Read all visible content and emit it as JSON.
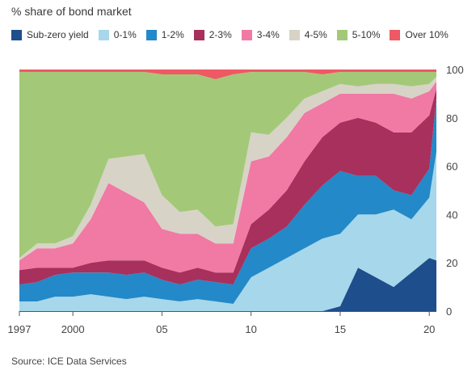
{
  "title": "% share of bond market",
  "source": "Source: ICE Data Services",
  "chart_data": {
    "type": "area",
    "stacked": true,
    "title": "% share of bond market",
    "xlabel": "",
    "ylabel": "",
    "xlim": [
      1997,
      2020.4
    ],
    "ylim": [
      0,
      100
    ],
    "x_ticks": [
      {
        "label": "1997",
        "value": 1997
      },
      {
        "label": "2000",
        "value": 2000
      },
      {
        "label": "05",
        "value": 2005
      },
      {
        "label": "10",
        "value": 2010
      },
      {
        "label": "15",
        "value": 2015
      },
      {
        "label": "20",
        "value": 2020
      }
    ],
    "y_ticks": [
      0,
      20,
      40,
      60,
      80,
      100
    ],
    "y_axis_side": "right",
    "grid": false,
    "legend_placement": "top",
    "x": [
      1997,
      1998,
      1999,
      2000,
      2001,
      2002,
      2003,
      2004,
      2005,
      2006,
      2007,
      2008,
      2009,
      2010,
      2011,
      2012,
      2013,
      2014,
      2015,
      2016,
      2017,
      2018,
      2019,
      2020,
      2020.4
    ],
    "series": [
      {
        "name": "Sub-zero yield",
        "color": "#1f4e8c",
        "values": [
          0,
          0,
          0,
          0,
          0,
          0,
          0,
          0,
          0,
          0,
          0,
          0,
          0,
          0,
          0,
          0,
          0,
          0,
          2,
          18,
          14,
          10,
          16,
          22,
          21
        ]
      },
      {
        "name": "0-1%",
        "color": "#a7d7ea",
        "values": [
          4,
          4,
          6,
          6,
          7,
          6,
          5,
          6,
          5,
          4,
          5,
          4,
          3,
          14,
          18,
          22,
          26,
          30,
          30,
          22,
          26,
          32,
          22,
          25,
          45
        ]
      },
      {
        "name": "1-2%",
        "color": "#2389c8",
        "values": [
          7,
          8,
          9,
          10,
          9,
          10,
          10,
          10,
          8,
          7,
          8,
          8,
          8,
          12,
          12,
          13,
          18,
          22,
          26,
          16,
          16,
          8,
          10,
          12,
          22
        ]
      },
      {
        "name": "2-3%",
        "color": "#a8305d",
        "values": [
          6,
          6,
          3,
          2,
          4,
          5,
          6,
          5,
          5,
          5,
          5,
          4,
          5,
          10,
          12,
          15,
          18,
          20,
          20,
          24,
          22,
          24,
          26,
          22,
          4
        ]
      },
      {
        "name": "3-4%",
        "color": "#f07aa4",
        "values": [
          4,
          8,
          8,
          10,
          18,
          32,
          28,
          24,
          16,
          16,
          14,
          12,
          12,
          26,
          22,
          22,
          20,
          14,
          12,
          10,
          12,
          16,
          14,
          10,
          3
        ]
      },
      {
        "name": "4-5%",
        "color": "#d8d3c7",
        "values": [
          1,
          2,
          2,
          3,
          6,
          10,
          15,
          20,
          14,
          9,
          10,
          7,
          8,
          12,
          9,
          8,
          6,
          5,
          4,
          3,
          4,
          4,
          5,
          3,
          2
        ]
      },
      {
        "name": "5-10%",
        "color": "#a3c978",
        "values": [
          77,
          71,
          71,
          68,
          55,
          36,
          35,
          34,
          50,
          57,
          56,
          61,
          62,
          25,
          26,
          19,
          11,
          7,
          5,
          6,
          5,
          5,
          6,
          5,
          2
        ]
      },
      {
        "name": "Over 10%",
        "color": "#ee5964",
        "values": [
          1,
          1,
          1,
          1,
          1,
          1,
          1,
          1,
          2,
          2,
          2,
          4,
          2,
          1,
          1,
          1,
          1,
          2,
          1,
          1,
          1,
          1,
          1,
          1,
          1
        ]
      }
    ]
  }
}
